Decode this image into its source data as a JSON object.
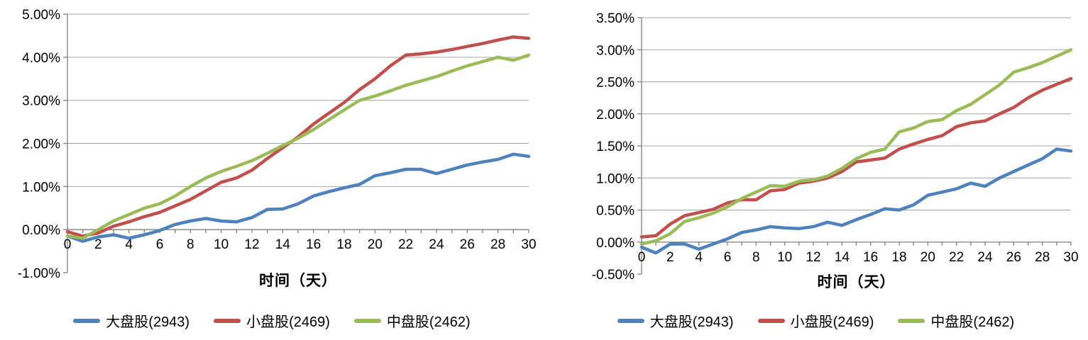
{
  "page": {
    "background": "#FFFFFF"
  },
  "chart_data": [
    {
      "type": "line",
      "title": "",
      "xlabel": "时间（天）",
      "ylabel": "",
      "xlim": [
        0,
        30
      ],
      "ylim": [
        -1,
        5
      ],
      "grid": true,
      "legend_position": "bottom",
      "x": [
        0,
        1,
        2,
        3,
        4,
        5,
        6,
        7,
        8,
        9,
        10,
        11,
        12,
        13,
        14,
        15,
        16,
        17,
        18,
        19,
        20,
        21,
        22,
        23,
        24,
        25,
        26,
        27,
        28,
        29,
        30
      ],
      "x_tick_labels": [
        "0",
        "2",
        "4",
        "6",
        "8",
        "10",
        "12",
        "14",
        "16",
        "18",
        "20",
        "22",
        "24",
        "26",
        "28",
        "30"
      ],
      "y_tick_labels": [
        "5.00%",
        "4.00%",
        "3.00%",
        "2.00%",
        "1.00%",
        "0.00%",
        "-1.00%"
      ],
      "series": [
        {
          "name": "大盘股(2943)",
          "color": "#4F81BD",
          "values": [
            -0.15,
            -0.27,
            -0.17,
            -0.12,
            -0.2,
            -0.12,
            -0.02,
            0.12,
            0.2,
            0.26,
            0.2,
            0.18,
            0.28,
            0.47,
            0.48,
            0.6,
            0.78,
            0.88,
            0.97,
            1.05,
            1.25,
            1.32,
            1.4,
            1.4,
            1.3,
            1.4,
            1.5,
            1.57,
            1.63,
            1.75,
            1.7
          ]
        },
        {
          "name": "小盘股(2469)",
          "color": "#C0504D",
          "values": [
            -0.05,
            -0.15,
            -0.08,
            0.08,
            0.18,
            0.3,
            0.4,
            0.55,
            0.7,
            0.9,
            1.1,
            1.2,
            1.38,
            1.65,
            1.9,
            2.15,
            2.45,
            2.7,
            2.95,
            3.25,
            3.5,
            3.8,
            4.05,
            4.08,
            4.12,
            4.18,
            4.25,
            4.32,
            4.4,
            4.47,
            4.44
          ]
        },
        {
          "name": "中盘股(2462)",
          "color": "#9BBB59",
          "values": [
            -0.15,
            -0.2,
            0.0,
            0.2,
            0.35,
            0.5,
            0.6,
            0.78,
            1.0,
            1.2,
            1.35,
            1.47,
            1.6,
            1.77,
            1.95,
            2.12,
            2.32,
            2.55,
            2.78,
            3.0,
            3.1,
            3.22,
            3.35,
            3.45,
            3.55,
            3.68,
            3.8,
            3.9,
            4.0,
            3.93,
            4.05
          ]
        }
      ]
    },
    {
      "type": "line",
      "title": "",
      "xlabel": "时间（天）",
      "ylabel": "",
      "xlim": [
        0,
        30
      ],
      "ylim": [
        -0.5,
        3.5
      ],
      "grid": true,
      "legend_position": "bottom",
      "x": [
        0,
        1,
        2,
        3,
        4,
        5,
        6,
        7,
        8,
        9,
        10,
        11,
        12,
        13,
        14,
        15,
        16,
        17,
        18,
        19,
        20,
        21,
        22,
        23,
        24,
        25,
        26,
        27,
        28,
        29,
        30
      ],
      "x_tick_labels": [
        "0",
        "2",
        "4",
        "6",
        "8",
        "10",
        "12",
        "14",
        "16",
        "18",
        "20",
        "22",
        "24",
        "26",
        "28",
        "30"
      ],
      "y_tick_labels": [
        "3.50%",
        "3.00%",
        "2.50%",
        "2.00%",
        "1.50%",
        "1.00%",
        "0.50%",
        "0.00%",
        "-0.50%"
      ],
      "series": [
        {
          "name": "大盘股(2943)",
          "color": "#4F81BD",
          "values": [
            -0.08,
            -0.17,
            -0.03,
            -0.03,
            -0.11,
            -0.03,
            0.05,
            0.15,
            0.19,
            0.24,
            0.22,
            0.21,
            0.24,
            0.31,
            0.26,
            0.35,
            0.43,
            0.52,
            0.5,
            0.58,
            0.73,
            0.78,
            0.83,
            0.92,
            0.87,
            1.0,
            1.1,
            1.2,
            1.3,
            1.45,
            1.42
          ]
        },
        {
          "name": "小盘股(2469)",
          "color": "#C0504D",
          "values": [
            0.08,
            0.1,
            0.28,
            0.41,
            0.46,
            0.51,
            0.61,
            0.66,
            0.66,
            0.8,
            0.82,
            0.92,
            0.95,
            1.0,
            1.1,
            1.25,
            1.28,
            1.31,
            1.45,
            1.53,
            1.6,
            1.66,
            1.8,
            1.86,
            1.89,
            2.0,
            2.1,
            2.25,
            2.37,
            2.46,
            2.55
          ]
        },
        {
          "name": "中盘股(2462)",
          "color": "#9BBB59",
          "values": [
            -0.03,
            0.02,
            0.13,
            0.32,
            0.38,
            0.45,
            0.55,
            0.68,
            0.78,
            0.88,
            0.87,
            0.95,
            0.97,
            1.03,
            1.15,
            1.3,
            1.4,
            1.45,
            1.72,
            1.78,
            1.88,
            1.91,
            2.05,
            2.15,
            2.3,
            2.45,
            2.65,
            2.72,
            2.8,
            2.9,
            3.0
          ]
        }
      ]
    }
  ]
}
